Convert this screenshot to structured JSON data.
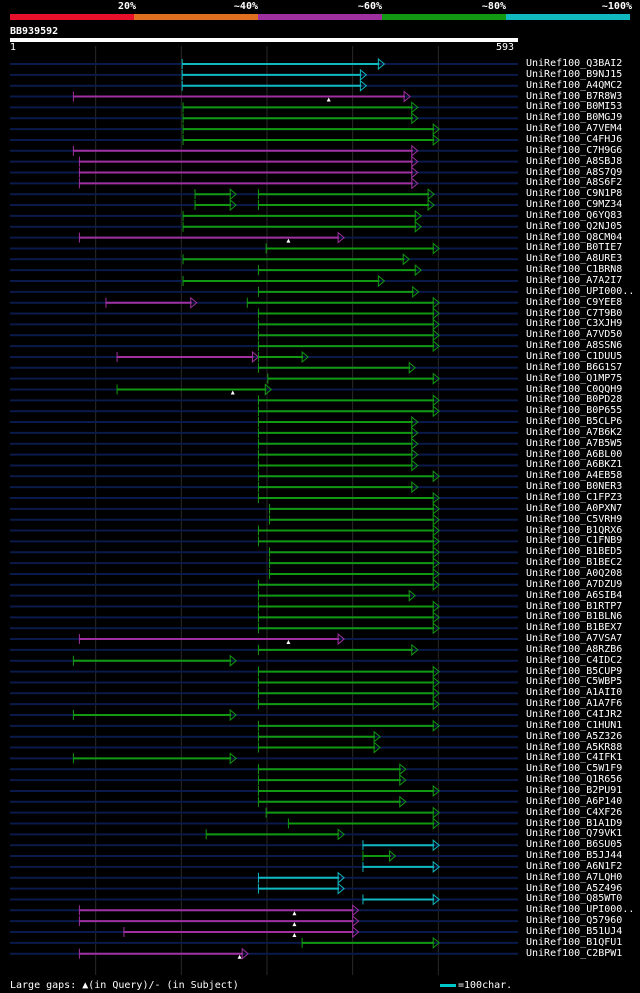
{
  "identity_legend": {
    "labels": [
      "20%",
      "~40%",
      "~60%",
      "~80%",
      "~100%"
    ],
    "colors": [
      "#E8102A",
      "#E07020",
      "#A030A0",
      "#119911",
      "#10B8C0"
    ]
  },
  "query": {
    "name": "BB939592",
    "start": "1",
    "end": "593",
    "length": 593
  },
  "hits": [
    {
      "label": "UniRef100_Q3BAI2",
      "color": "#10B8C0",
      "segments": [
        [
          201,
          437
        ]
      ]
    },
    {
      "label": "UniRef100_B9NJ15",
      "color": "#10B8C0",
      "segments": [
        [
          201,
          416
        ]
      ]
    },
    {
      "label": "UniRef100_A4QMC2",
      "color": "#10B8C0",
      "segments": [
        [
          201,
          416
        ]
      ]
    },
    {
      "label": "UniRef100_B7R8W3",
      "color": "#A030A0",
      "segments": [
        [
          74,
          467
        ]
      ],
      "marker": [
        372
      ]
    },
    {
      "label": "UniRef100_B0MI53",
      "color": "#119911",
      "segments": [
        [
          202,
          476
        ]
      ]
    },
    {
      "label": "UniRef100_B0MGJ9",
      "color": "#119911",
      "segments": [
        [
          202,
          476
        ]
      ]
    },
    {
      "label": "UniRef100_A7VEM4",
      "color": "#119911",
      "segments": [
        [
          202,
          501
        ]
      ]
    },
    {
      "label": "UniRef100_C4FHJ6",
      "color": "#119911",
      "segments": [
        [
          202,
          501
        ]
      ]
    },
    {
      "label": "UniRef100_C7H9G6",
      "color": "#A030A0",
      "segments": [
        [
          74,
          476
        ]
      ]
    },
    {
      "label": "UniRef100_A8SBJ8",
      "color": "#A030A0",
      "segments": [
        [
          81,
          476
        ]
      ]
    },
    {
      "label": "UniRef100_A8S7Q9",
      "color": "#A030A0",
      "segments": [
        [
          81,
          476
        ]
      ]
    },
    {
      "label": "UniRef100_A8S6F2",
      "color": "#A030A0",
      "segments": [
        [
          81,
          476
        ]
      ]
    },
    {
      "label": "UniRef100_C9N1P8",
      "color": "#119911",
      "segments": [
        [
          216,
          264
        ],
        [
          290,
          495
        ]
      ]
    },
    {
      "label": "UniRef100_C9MZ34",
      "color": "#119911",
      "segments": [
        [
          216,
          264
        ],
        [
          290,
          495
        ]
      ]
    },
    {
      "label": "UniRef100_Q6YQ83",
      "color": "#119911",
      "segments": [
        [
          202,
          480
        ]
      ]
    },
    {
      "label": "UniRef100_Q2NJ05",
      "color": "#119911",
      "segments": [
        [
          202,
          480
        ]
      ]
    },
    {
      "label": "UniRef100_Q8CM04",
      "color": "#A030A0",
      "segments": [
        [
          81,
          390
        ]
      ],
      "marker": [
        325
      ]
    },
    {
      "label": "UniRef100_B0TIE7",
      "color": "#119911",
      "segments": [
        [
          299,
          501
        ]
      ]
    },
    {
      "label": "UniRef100_A8URE3",
      "color": "#119911",
      "segments": [
        [
          202,
          466
        ]
      ]
    },
    {
      "label": "UniRef100_C1BRN8",
      "color": "#119911",
      "segments": [
        [
          290,
          480
        ]
      ]
    },
    {
      "label": "UniRef100_A7A2I7",
      "color": "#119911",
      "segments": [
        [
          202,
          437
        ]
      ]
    },
    {
      "label": "UniRef100_UPI000..",
      "color": "#119911",
      "segments": [
        [
          290,
          477
        ]
      ]
    },
    {
      "label": "UniRef100_C9YEE8",
      "color": "#A030A0",
      "segments": [
        [
          112,
          218
        ]
      ],
      "extra": [
        [
          277,
          501,
          "#119911"
        ]
      ]
    },
    {
      "label": "UniRef100_C7T9B0",
      "color": "#119911",
      "segments": [
        [
          290,
          501
        ]
      ]
    },
    {
      "label": "UniRef100_C3XJH9",
      "color": "#119911",
      "segments": [
        [
          290,
          501
        ]
      ]
    },
    {
      "label": "UniRef100_A7VD50",
      "color": "#119911",
      "segments": [
        [
          290,
          501
        ]
      ]
    },
    {
      "label": "UniRef100_A8SSN6",
      "color": "#119911",
      "segments": [
        [
          290,
          501
        ]
      ]
    },
    {
      "label": "UniRef100_C1DUU5",
      "color": "#A030A0",
      "segments": [
        [
          125,
          290
        ]
      ],
      "extra": [
        [
          290,
          348,
          "#119911"
        ]
      ]
    },
    {
      "label": "UniRef100_B6G1S7",
      "color": "#119911",
      "segments": [
        [
          290,
          473
        ]
      ]
    },
    {
      "label": "UniRef100_Q1MP75",
      "color": "#119911",
      "segments": [
        [
          301,
          501
        ]
      ]
    },
    {
      "label": "UniRef100_C0QQH9",
      "color": "#119911",
      "segments": [
        [
          125,
          305
        ]
      ],
      "marker": [
        260
      ]
    },
    {
      "label": "UniRef100_B0PD28",
      "color": "#119911",
      "segments": [
        [
          290,
          501
        ]
      ]
    },
    {
      "label": "UniRef100_B0P655",
      "color": "#119911",
      "segments": [
        [
          290,
          501
        ]
      ]
    },
    {
      "label": "UniRef100_B5CLP6",
      "color": "#119911",
      "segments": [
        [
          290,
          476
        ]
      ]
    },
    {
      "label": "UniRef100_A7B6K2",
      "color": "#119911",
      "segments": [
        [
          290,
          476
        ]
      ]
    },
    {
      "label": "UniRef100_A7B5W5",
      "color": "#119911",
      "segments": [
        [
          290,
          476
        ]
      ]
    },
    {
      "label": "UniRef100_A6BL00",
      "color": "#119911",
      "segments": [
        [
          290,
          476
        ]
      ]
    },
    {
      "label": "UniRef100_A6BKZ1",
      "color": "#119911",
      "segments": [
        [
          290,
          476
        ]
      ]
    },
    {
      "label": "UniRef100_A4EB58",
      "color": "#119911",
      "segments": [
        [
          290,
          501
        ]
      ]
    },
    {
      "label": "UniRef100_B0NER3",
      "color": "#119911",
      "segments": [
        [
          290,
          476
        ]
      ]
    },
    {
      "label": "UniRef100_C1FPZ3",
      "color": "#119911",
      "segments": [
        [
          290,
          501
        ]
      ]
    },
    {
      "label": "UniRef100_A0PXN7",
      "color": "#119911",
      "segments": [
        [
          303,
          501
        ]
      ]
    },
    {
      "label": "UniRef100_C5VRH9",
      "color": "#119911",
      "segments": [
        [
          303,
          501
        ]
      ]
    },
    {
      "label": "UniRef100_B1QRX6",
      "color": "#119911",
      "segments": [
        [
          290,
          501
        ]
      ]
    },
    {
      "label": "UniRef100_C1FNB9",
      "color": "#119911",
      "segments": [
        [
          290,
          501
        ]
      ]
    },
    {
      "label": "UniRef100_B1BED5",
      "color": "#119911",
      "segments": [
        [
          303,
          501
        ]
      ]
    },
    {
      "label": "UniRef100_B1BEC2",
      "color": "#119911",
      "segments": [
        [
          303,
          501
        ]
      ]
    },
    {
      "label": "UniRef100_A0Q208",
      "color": "#119911",
      "segments": [
        [
          303,
          501
        ]
      ]
    },
    {
      "label": "UniRef100_A7DZU9",
      "color": "#119911",
      "segments": [
        [
          290,
          501
        ]
      ]
    },
    {
      "label": "UniRef100_A6SIB4",
      "color": "#119911",
      "segments": [
        [
          290,
          473
        ]
      ]
    },
    {
      "label": "UniRef100_B1RTP7",
      "color": "#119911",
      "segments": [
        [
          290,
          501
        ]
      ]
    },
    {
      "label": "UniRef100_B1BLN6",
      "color": "#119911",
      "segments": [
        [
          290,
          501
        ]
      ]
    },
    {
      "label": "UniRef100_B1BEX7",
      "color": "#119911",
      "segments": [
        [
          290,
          501
        ]
      ]
    },
    {
      "label": "UniRef100_A7VSA7",
      "color": "#A030A0",
      "segments": [
        [
          81,
          390
        ]
      ],
      "marker": [
        325
      ]
    },
    {
      "label": "UniRef100_A8RZB6",
      "color": "#119911",
      "segments": [
        [
          290,
          476
        ]
      ]
    },
    {
      "label": "UniRef100_C4IDC2",
      "color": "#119911",
      "segments": [
        [
          74,
          264
        ]
      ]
    },
    {
      "label": "UniRef100_B5CUP9",
      "color": "#119911",
      "segments": [
        [
          290,
          501
        ]
      ]
    },
    {
      "label": "UniRef100_C5WBP5",
      "color": "#119911",
      "segments": [
        [
          290,
          501
        ]
      ]
    },
    {
      "label": "UniRef100_A1AII0",
      "color": "#119911",
      "segments": [
        [
          290,
          501
        ]
      ]
    },
    {
      "label": "UniRef100_A1A7F6",
      "color": "#119911",
      "segments": [
        [
          290,
          501
        ]
      ]
    },
    {
      "label": "UniRef100_C4IJR2",
      "color": "#119911",
      "segments": [
        [
          74,
          264
        ]
      ]
    },
    {
      "label": "UniRef100_C1HUN1",
      "color": "#119911",
      "segments": [
        [
          290,
          501
        ]
      ]
    },
    {
      "label": "UniRef100_A5Z326",
      "color": "#119911",
      "segments": [
        [
          290,
          432
        ]
      ]
    },
    {
      "label": "UniRef100_A5KR88",
      "color": "#119911",
      "segments": [
        [
          290,
          432
        ]
      ]
    },
    {
      "label": "UniRef100_C4IFK1",
      "color": "#119911",
      "segments": [
        [
          74,
          264
        ]
      ]
    },
    {
      "label": "UniRef100_C5W1F9",
      "color": "#119911",
      "segments": [
        [
          290,
          462
        ]
      ]
    },
    {
      "label": "UniRef100_Q1R656",
      "color": "#119911",
      "segments": [
        [
          290,
          462
        ]
      ]
    },
    {
      "label": "UniRef100_B2PU91",
      "color": "#119911",
      "segments": [
        [
          290,
          501
        ]
      ]
    },
    {
      "label": "UniRef100_A6P140",
      "color": "#119911",
      "segments": [
        [
          290,
          462
        ]
      ]
    },
    {
      "label": "UniRef100_C4XF26",
      "color": "#119911",
      "segments": [
        [
          299,
          501
        ]
      ]
    },
    {
      "label": "UniRef100_B1A1D9",
      "color": "#119911",
      "segments": [
        [
          325,
          501
        ]
      ]
    },
    {
      "label": "UniRef100_Q79VK1",
      "color": "#119911",
      "segments": [
        [
          229,
          390
        ]
      ]
    },
    {
      "label": "UniRef100_B6SU05",
      "color": "#10B8C0",
      "segments": [
        [
          412,
          501
        ]
      ]
    },
    {
      "label": "UniRef100_B5JJ44",
      "color": "#119911",
      "segments": [
        [
          412,
          450
        ]
      ]
    },
    {
      "label": "UniRef100_A6N1F2",
      "color": "#10B8C0",
      "segments": [
        [
          412,
          501
        ]
      ]
    },
    {
      "label": "UniRef100_A7LQH0",
      "color": "#10B8C0",
      "segments": [
        [
          290,
          390
        ]
      ]
    },
    {
      "label": "UniRef100_A5Z496",
      "color": "#10B8C0",
      "segments": [
        [
          290,
          390
        ]
      ]
    },
    {
      "label": "UniRef100_Q85WT0",
      "color": "#10B8C0",
      "segments": [
        [
          412,
          501
        ]
      ]
    },
    {
      "label": "UniRef100_UPI000..",
      "color": "#A030A0",
      "segments": [
        [
          81,
          407
        ]
      ],
      "marker": [
        332
      ]
    },
    {
      "label": "UniRef100_Q57960",
      "color": "#A030A0",
      "segments": [
        [
          81,
          407
        ]
      ],
      "marker": [
        332
      ]
    },
    {
      "label": "UniRef100_B51UJ4",
      "color": "#A030A0",
      "segments": [
        [
          133,
          407
        ]
      ],
      "marker": [
        332
      ]
    },
    {
      "label": "UniRef100_B1QFU1",
      "color": "#119911",
      "segments": [
        [
          341,
          501
        ]
      ]
    },
    {
      "label": "UniRef100_C2BPW1",
      "color": "#A030A0",
      "segments": [
        [
          81,
          278
        ]
      ],
      "marker": [
        268
      ]
    }
  ],
  "footer": {
    "gaps_text": "Large gaps: ▲(in Query)/- (in Subject)",
    "scale_text": "=100char."
  }
}
